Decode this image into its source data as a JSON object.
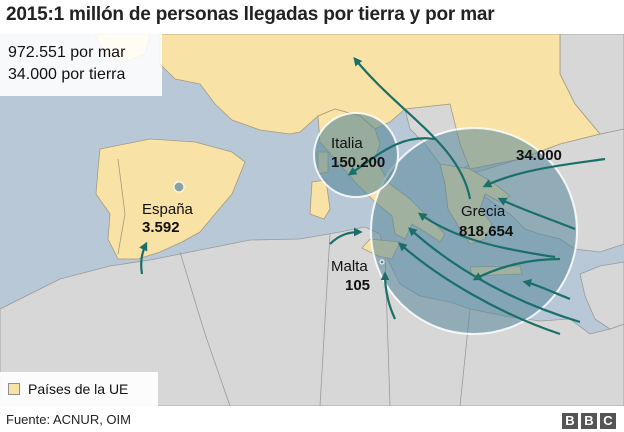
{
  "title": "2015:1 millón de personas llegadas por tierra y por mar",
  "totals": {
    "sea": "972.551 por mar",
    "land": "34.000 por tierra"
  },
  "map": {
    "colors": {
      "sea": "#b9c8d7",
      "eu_land": "#f8e2a6",
      "non_eu_land": "#d7d7d7",
      "circle": "#58889a",
      "arrow": "#1b6f6a"
    },
    "labels": {
      "espana_name": "España",
      "espana_value": "3.592",
      "italia_name": "Italia",
      "italia_value": "150.200",
      "grecia_name": "Grecia",
      "grecia_value": "818.654",
      "malta_name": "Malta",
      "malta_value": "105",
      "land_value": "34.000"
    }
  },
  "legend": {
    "label": "Países de la UE"
  },
  "footer": {
    "source": "Fuente: ACNUR, OIM",
    "logo_letters": [
      "B",
      "B",
      "C"
    ]
  }
}
